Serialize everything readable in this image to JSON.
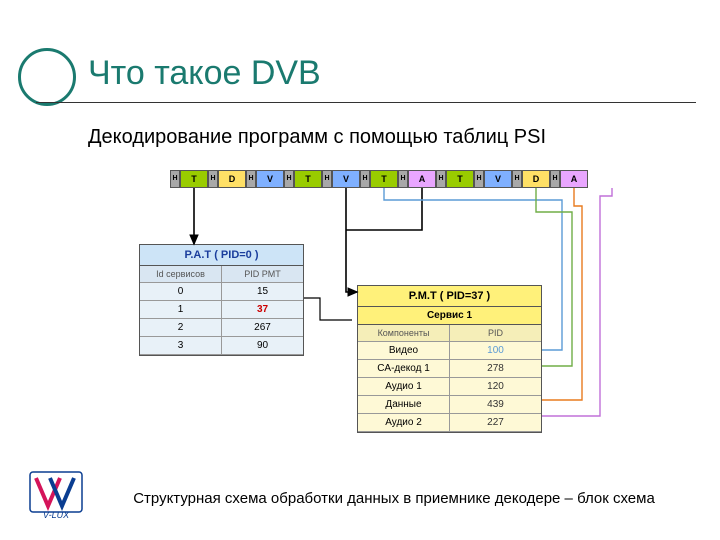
{
  "title": "Что такое DVB",
  "subtitle": "Декодирование программ с помощью таблиц PSI",
  "footer": "Структурная схема обработки данных в приемнике декодере – блок схема",
  "colors": {
    "stream_T": "#99cc00",
    "stream_D": "#ffe066",
    "stream_V": "#7fb0ff",
    "stream_A": "#e9a6ff",
    "stream_H": "#a8a8a8",
    "pat_bg": "#cde4f7",
    "pmt_bg": "#fff17a",
    "arrow_black": "#000000",
    "arrow_blue": "#5b9bd5",
    "arrow_orange": "#e87b1e",
    "arrow_green": "#70ad47",
    "arrow_purple": "#c070d8"
  },
  "stream": {
    "cells": [
      "H",
      "T",
      "H",
      "D",
      "H",
      "V",
      "H",
      "T",
      "H",
      "V",
      "H",
      "T",
      "H",
      "A",
      "H",
      "T",
      "H",
      "V",
      "H",
      "D",
      "H",
      "A"
    ],
    "typeColors": {
      "T": "#99cc00",
      "D": "#ffe066",
      "V": "#7fb0ff",
      "A": "#e9a6ff"
    }
  },
  "pat": {
    "header": "P.A.T ( PID=0 )",
    "col1": "Id сервисов",
    "col2": "PID PMT",
    "rows": [
      {
        "id": "0",
        "pid": "15",
        "hl": false
      },
      {
        "id": "1",
        "pid": "37",
        "hl": true
      },
      {
        "id": "2",
        "pid": "267",
        "hl": false
      },
      {
        "id": "3",
        "pid": "90",
        "hl": false
      }
    ]
  },
  "pmt": {
    "header": "P.M.T ( PID=37 )",
    "subheader": "Сервис 1",
    "col1": "Компоненты",
    "col2": "PID",
    "rows": [
      {
        "comp": "Видео",
        "pid": "100",
        "color": "#5b9bd5"
      },
      {
        "comp": "CA-декод 1",
        "pid": "278",
        "color": "#333"
      },
      {
        "comp": "Аудио 1",
        "pid": "120",
        "color": "#333"
      },
      {
        "comp": "Данные",
        "pid": "439",
        "color": "#333"
      },
      {
        "comp": "Аудио 2",
        "pid": "227",
        "color": "#333"
      }
    ]
  },
  "logo_text": "V-LUX"
}
